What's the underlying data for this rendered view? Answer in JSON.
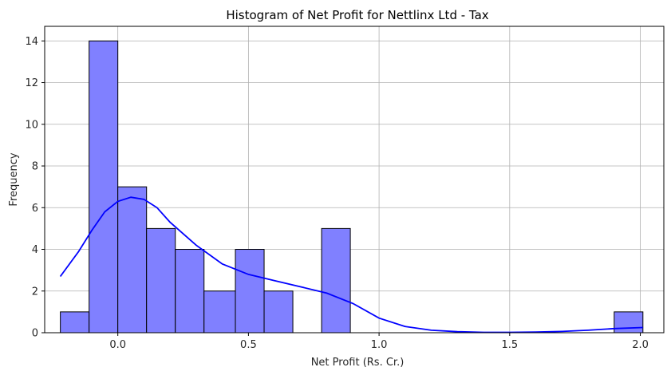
{
  "chart_data": {
    "type": "bar",
    "title": "Histogram of Net Profit for Nettlinx Ltd - Tax",
    "xlabel": "Net Profit (Rs. Cr.)",
    "ylabel": "Frequency",
    "xlim": [
      -0.28,
      2.09
    ],
    "ylim": [
      0,
      14.7
    ],
    "x_ticks": [
      0.0,
      0.5,
      1.0,
      1.5,
      2.0
    ],
    "x_tick_labels": [
      "0.0",
      "0.5",
      "1.0",
      "1.5",
      "2.0"
    ],
    "y_ticks": [
      0,
      2,
      4,
      6,
      8,
      10,
      12,
      14
    ],
    "y_tick_labels": [
      "0",
      "2",
      "4",
      "6",
      "8",
      "10",
      "12",
      "14"
    ],
    "grid": true,
    "bins": [
      {
        "x0": -0.22,
        "x1": -0.11,
        "count": 1
      },
      {
        "x0": -0.11,
        "x1": 0.0,
        "count": 14
      },
      {
        "x0": 0.0,
        "x1": 0.11,
        "count": 7
      },
      {
        "x0": 0.11,
        "x1": 0.22,
        "count": 5
      },
      {
        "x0": 0.22,
        "x1": 0.33,
        "count": 4
      },
      {
        "x0": 0.33,
        "x1": 0.45,
        "count": 2
      },
      {
        "x0": 0.45,
        "x1": 0.56,
        "count": 4
      },
      {
        "x0": 0.56,
        "x1": 0.67,
        "count": 2
      },
      {
        "x0": 0.67,
        "x1": 0.78,
        "count": 0
      },
      {
        "x0": 0.78,
        "x1": 0.89,
        "count": 5
      },
      {
        "x0": 0.89,
        "x1": 1.0,
        "count": 0
      },
      {
        "x0": 1.0,
        "x1": 1.12,
        "count": 0
      },
      {
        "x0": 1.12,
        "x1": 1.23,
        "count": 0
      },
      {
        "x0": 1.23,
        "x1": 1.34,
        "count": 0
      },
      {
        "x0": 1.34,
        "x1": 1.45,
        "count": 0
      },
      {
        "x0": 1.45,
        "x1": 1.56,
        "count": 0
      },
      {
        "x0": 1.56,
        "x1": 1.67,
        "count": 0
      },
      {
        "x0": 1.67,
        "x1": 1.79,
        "count": 0
      },
      {
        "x0": 1.79,
        "x1": 1.9,
        "count": 0
      },
      {
        "x0": 1.9,
        "x1": 2.01,
        "count": 1
      }
    ],
    "kde": {
      "x": [
        -0.22,
        -0.15,
        -0.1,
        -0.05,
        0.0,
        0.05,
        0.1,
        0.15,
        0.2,
        0.3,
        0.4,
        0.5,
        0.6,
        0.7,
        0.8,
        0.9,
        1.0,
        1.1,
        1.2,
        1.3,
        1.4,
        1.5,
        1.6,
        1.7,
        1.8,
        1.9,
        2.01
      ],
      "y": [
        2.7,
        3.9,
        4.9,
        5.8,
        6.3,
        6.5,
        6.4,
        6.0,
        5.3,
        4.2,
        3.3,
        2.8,
        2.5,
        2.2,
        1.9,
        1.4,
        0.7,
        0.3,
        0.12,
        0.05,
        0.02,
        0.02,
        0.03,
        0.06,
        0.12,
        0.2,
        0.25
      ]
    },
    "colors": {
      "bar_fill": "#8080ff",
      "bar_edge": "#000000",
      "kde_line": "#0000ff",
      "grid": "#b0b0b0"
    }
  }
}
